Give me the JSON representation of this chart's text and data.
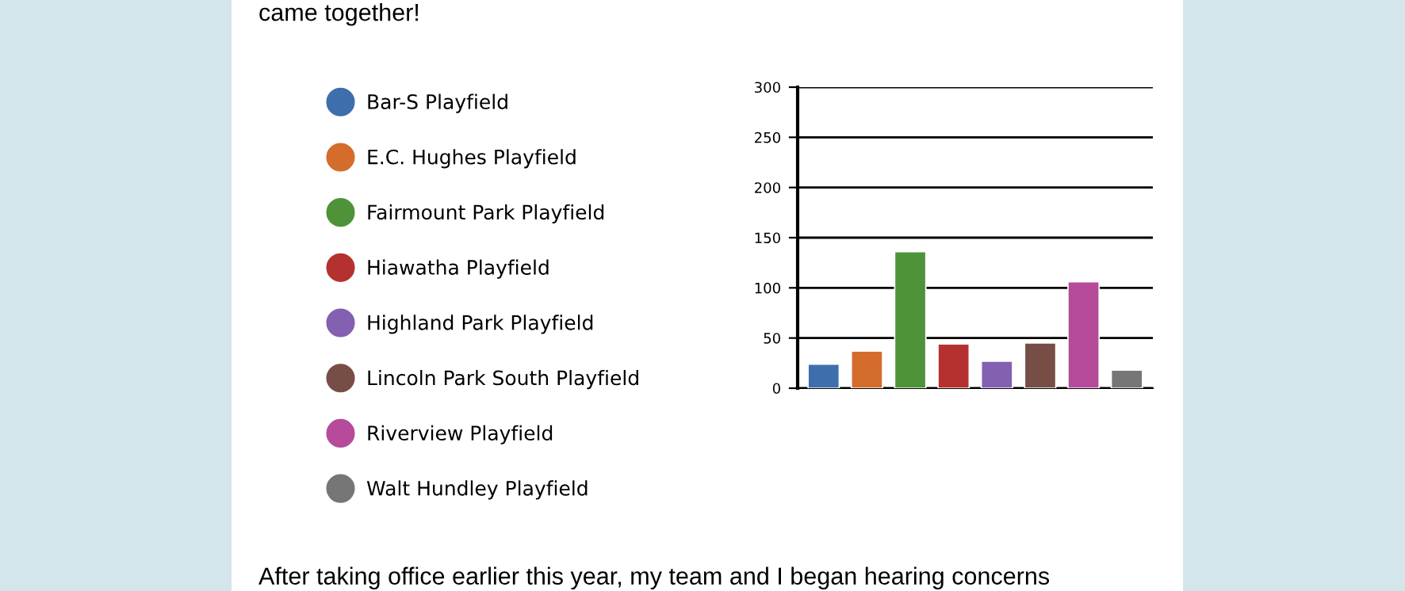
{
  "chart_data": {
    "type": "bar",
    "categories": [
      null,
      null,
      null,
      null,
      null,
      null,
      null,
      null
    ],
    "series": [
      {
        "name": "Bar-S Playfield",
        "color": "#3f6ead",
        "values": [
          24,
          null,
          null,
          null,
          null,
          null,
          null,
          null
        ]
      },
      {
        "name": "E.C. Hughes Playfield",
        "color": "#d46d2c",
        "values": [
          null,
          37,
          null,
          null,
          null,
          null,
          null,
          null
        ]
      },
      {
        "name": "Fairmount Park Playfield",
        "color": "#4f9338",
        "values": [
          null,
          null,
          136,
          null,
          null,
          null,
          null,
          null
        ]
      },
      {
        "name": "Hiawatha Playfield",
        "color": "#b53130",
        "values": [
          null,
          null,
          null,
          44,
          null,
          null,
          null,
          null
        ]
      },
      {
        "name": "Highland Park Playfield",
        "color": "#8360b0",
        "values": [
          null,
          null,
          null,
          null,
          27,
          null,
          null,
          null
        ]
      },
      {
        "name": "Lincoln Park South Playfield",
        "color": "#774e45",
        "values": [
          null,
          null,
          null,
          null,
          null,
          45,
          null,
          null
        ]
      },
      {
        "name": "Riverview Playfield",
        "color": "#b64b9b",
        "values": [
          null,
          null,
          null,
          null,
          null,
          null,
          106,
          null
        ]
      },
      {
        "name": "Walt Hundley Playfield",
        "color": "#767676",
        "values": [
          null,
          null,
          null,
          null,
          null,
          null,
          null,
          18
        ]
      }
    ],
    "ylim": [
      0,
      300
    ],
    "yticks": [
      0,
      50,
      100,
      150,
      200,
      250,
      300
    ],
    "grid": "y",
    "legend": "left",
    "marker": "circle",
    "annotations": [
      "came together!",
      "After taking office earlier this year, my team and I began hearing concerns"
    ]
  }
}
